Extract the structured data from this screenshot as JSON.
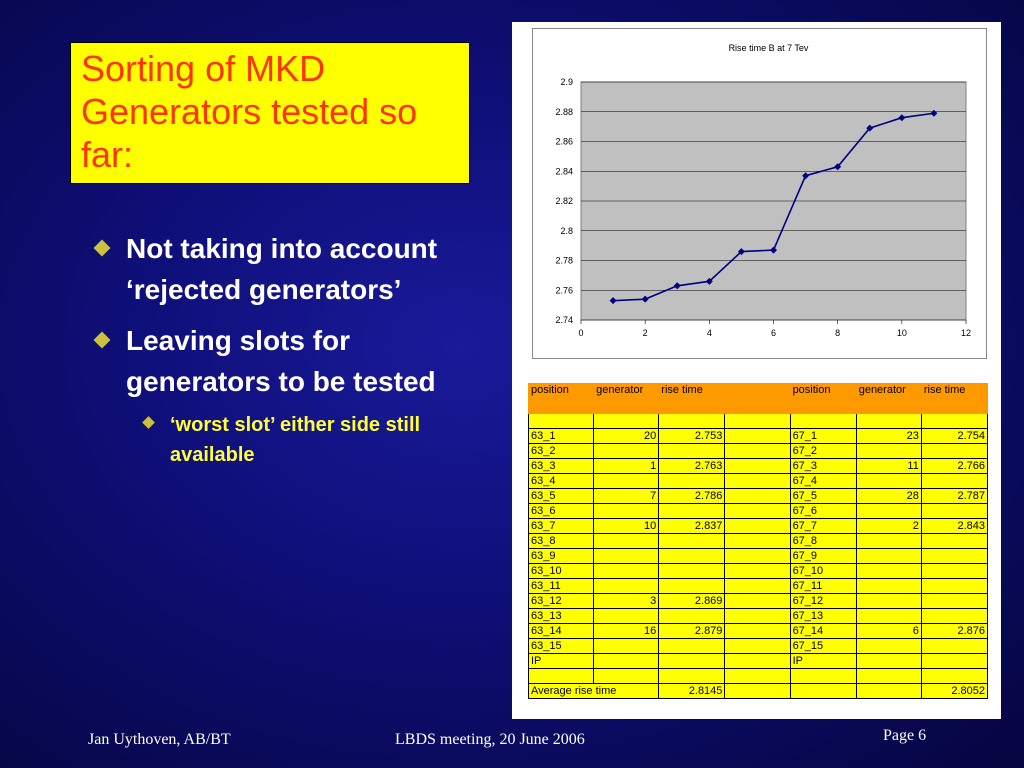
{
  "slide": {
    "title": "Sorting of MKD Generators tested so far:",
    "bullets": [
      "Not taking into account ‘rejected generators’",
      "Leaving slots for generators to be tested"
    ],
    "sub_bullet": "‘worst slot’ either side still available",
    "footer": {
      "author": "Jan Uythoven, AB/BT",
      "meeting": "LBDS meeting, 20 June 2006",
      "page": "Page 6"
    },
    "colors": {
      "title_bg": "#ffff00",
      "title_text": "#ff3300",
      "sub_bullet_text": "#ffff33",
      "line": "#000080",
      "plot_bg": "#c0c0c0"
    }
  },
  "chart_data": {
    "type": "line",
    "title": "Rise time B at 7 Tev",
    "xlabel": "",
    "ylabel": "",
    "x": [
      1,
      2,
      3,
      4,
      5,
      6,
      7,
      8,
      9,
      10,
      11
    ],
    "values": [
      2.753,
      2.754,
      2.763,
      2.766,
      2.786,
      2.787,
      2.837,
      2.843,
      2.869,
      2.876,
      2.879
    ],
    "xlim": [
      0,
      12
    ],
    "ylim": [
      2.74,
      2.9
    ],
    "x_ticks": [
      "0",
      "2",
      "4",
      "6",
      "8",
      "10",
      "12"
    ],
    "y_ticks": [
      "2.74",
      "2.76",
      "2.78",
      "2.8",
      "2.82",
      "2.84",
      "2.86",
      "2.88",
      "2.9"
    ],
    "grid": true,
    "legend": "none"
  },
  "table": {
    "headers": [
      "position",
      "generator",
      "rise time",
      "",
      "position",
      "generator",
      "rise time"
    ],
    "rows": [
      [
        "",
        "",
        "",
        "",
        "",
        "",
        ""
      ],
      [
        "63_1",
        "20",
        "2.753",
        "",
        "67_1",
        "23",
        "2.754"
      ],
      [
        "63_2",
        "",
        "",
        "",
        "67_2",
        "",
        ""
      ],
      [
        "63_3",
        "1",
        "2.763",
        "",
        "67_3",
        "11",
        "2.766"
      ],
      [
        "63_4",
        "",
        "",
        "",
        "67_4",
        "",
        ""
      ],
      [
        "63_5",
        "7",
        "2.786",
        "",
        "67_5",
        "28",
        "2.787"
      ],
      [
        "63_6",
        "",
        "",
        "",
        "67_6",
        "",
        ""
      ],
      [
        "63_7",
        "10",
        "2.837",
        "",
        "67_7",
        "2",
        "2.843"
      ],
      [
        "63_8",
        "",
        "",
        "",
        "67_8",
        "",
        ""
      ],
      [
        "63_9",
        "",
        "",
        "",
        "67_9",
        "",
        ""
      ],
      [
        "63_10",
        "",
        "",
        "",
        "67_10",
        "",
        ""
      ],
      [
        "63_11",
        "",
        "",
        "",
        "67_11",
        "",
        ""
      ],
      [
        "63_12",
        "3",
        "2.869",
        "",
        "67_12",
        "",
        ""
      ],
      [
        "63_13",
        "",
        "",
        "",
        "67_13",
        "",
        ""
      ],
      [
        "63_14",
        "16",
        "2.879",
        "",
        "67_14",
        "6",
        "2.876"
      ],
      [
        "63_15",
        "",
        "",
        "",
        "67_15",
        "",
        ""
      ],
      [
        "IP",
        "",
        "",
        "",
        "IP",
        "",
        ""
      ],
      [
        "",
        "",
        "",
        "",
        "",
        "",
        ""
      ]
    ],
    "average_label": "Average rise time",
    "average_left": "2.8145",
    "average_right": "2.8052"
  }
}
